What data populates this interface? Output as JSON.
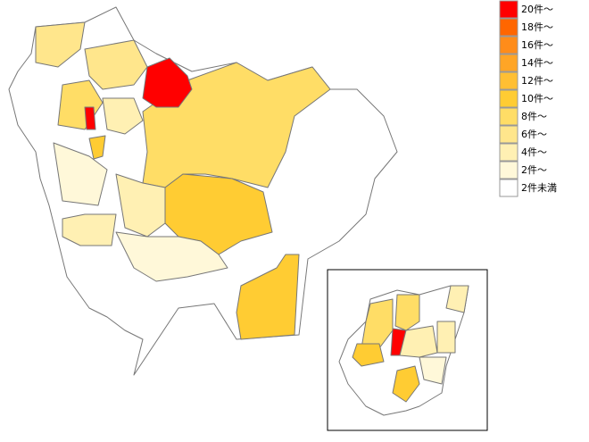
{
  "legend": {
    "items": [
      {
        "label": "20件～",
        "color": "#ff0000"
      },
      {
        "label": "18件～",
        "color": "#ff6600"
      },
      {
        "label": "16件～",
        "color": "#ff8c1a"
      },
      {
        "label": "14件～",
        "color": "#ffa526"
      },
      {
        "label": "12件～",
        "color": "#ffbf33"
      },
      {
        "label": "10件～",
        "color": "#ffcc33"
      },
      {
        "label": "8件～",
        "color": "#ffdd66"
      },
      {
        "label": "6件～",
        "color": "#ffe68c"
      },
      {
        "label": "4件～",
        "color": "#fff0b3"
      },
      {
        "label": "2件～",
        "color": "#fff8d9"
      },
      {
        "label": "2件未満",
        "color": "#ffffff"
      }
    ]
  }
}
